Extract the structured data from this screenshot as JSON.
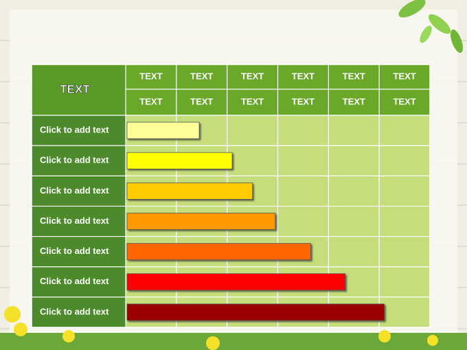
{
  "table": {
    "corner": "TEXT",
    "header_rows": [
      [
        "TEXT",
        "TEXT",
        "TEXT",
        "TEXT",
        "TEXT",
        "TEXT"
      ],
      [
        "TEXT",
        "TEXT",
        "TEXT",
        "TEXT",
        "TEXT",
        "TEXT"
      ]
    ],
    "rows": [
      {
        "label": "Click to add text",
        "bar_end": 1.45,
        "color": "#ffff99"
      },
      {
        "label": "Click to add text",
        "bar_end": 2.1,
        "color": "#ffff00"
      },
      {
        "label": "Click to add text",
        "bar_end": 2.5,
        "color": "#ffcc00"
      },
      {
        "label": "Click to add text",
        "bar_end": 2.95,
        "color": "#ff9900"
      },
      {
        "label": "Click to add text",
        "bar_end": 3.65,
        "color": "#ff6600"
      },
      {
        "label": "Click to add text",
        "bar_end": 4.33,
        "color": "#ff0000"
      },
      {
        "label": "Click to add text",
        "bar_end": 5.1,
        "color": "#990000"
      }
    ]
  }
}
